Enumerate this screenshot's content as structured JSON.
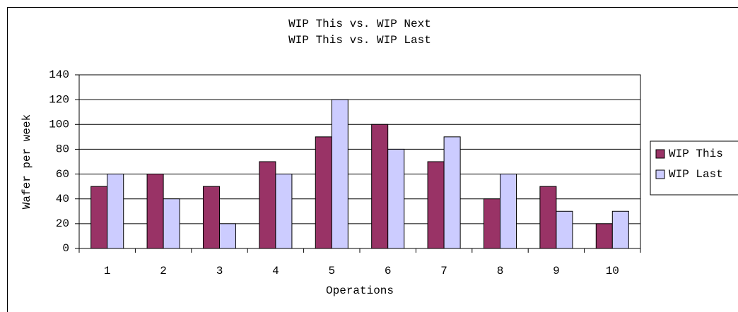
{
  "chart_data": {
    "type": "bar",
    "title": "WIP This vs. WIP Next",
    "subtitle": "WIP This vs. WIP Last",
    "x_label": "Operations",
    "y_label": "Wafer per week",
    "categories": [
      "1",
      "2",
      "3",
      "4",
      "5",
      "6",
      "7",
      "8",
      "9",
      "10"
    ],
    "series": [
      {
        "name": "WIP This",
        "color": "#993366",
        "values": [
          50,
          60,
          50,
          70,
          90,
          100,
          70,
          40,
          50,
          20
        ]
      },
      {
        "name": "WIP Last",
        "color": "#ccccff",
        "values": [
          60,
          40,
          20,
          60,
          120,
          80,
          90,
          60,
          30,
          30
        ]
      }
    ],
    "ylim": [
      0,
      140
    ],
    "yticks": [
      0,
      20,
      40,
      60,
      80,
      100,
      120,
      140
    ],
    "grid": true,
    "legend": "right"
  }
}
